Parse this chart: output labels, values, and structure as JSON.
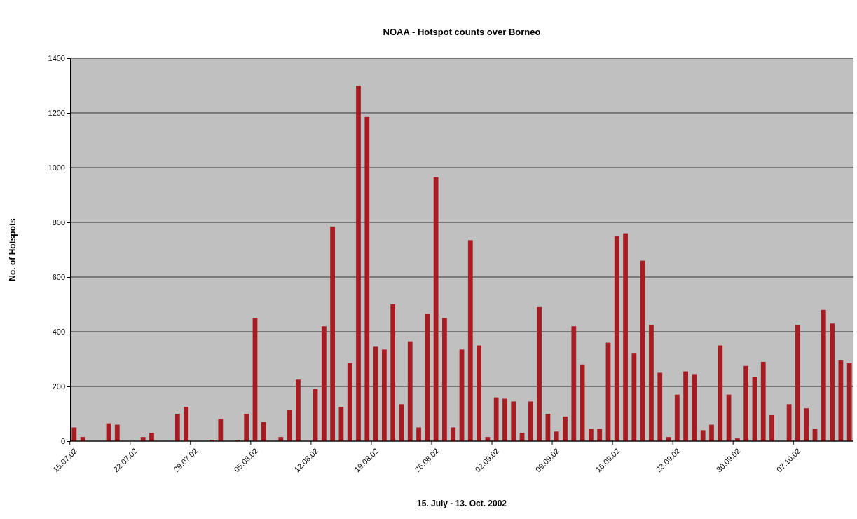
{
  "chart_data": {
    "type": "bar",
    "title": "NOAA - Hotspot counts over Borneo",
    "xlabel": "15. July - 13. Oct. 2002",
    "ylabel": "No. of Hotspots",
    "categories": [
      "15.07.02",
      null,
      null,
      null,
      null,
      null,
      null,
      "22.07.02",
      null,
      null,
      null,
      null,
      null,
      null,
      "29.07.02",
      null,
      null,
      null,
      null,
      null,
      null,
      "05.08.02",
      null,
      null,
      null,
      null,
      null,
      null,
      "12.08.02",
      null,
      null,
      null,
      null,
      null,
      null,
      "19.08.02",
      null,
      null,
      null,
      null,
      null,
      null,
      "26.08.02",
      null,
      null,
      null,
      null,
      null,
      null,
      "02.09.02",
      null,
      null,
      null,
      null,
      null,
      null,
      "09.09.02",
      null,
      null,
      null,
      null,
      null,
      null,
      "16.09.02",
      null,
      null,
      null,
      null,
      null,
      null,
      "23.09.02",
      null,
      null,
      null,
      null,
      null,
      null,
      "30.09.02",
      null,
      null,
      null,
      null,
      null,
      null,
      "07.10.02",
      null,
      null,
      null,
      null,
      null,
      null
    ],
    "values": [
      50,
      15,
      0,
      0,
      65,
      60,
      0,
      0,
      15,
      30,
      0,
      0,
      100,
      125,
      0,
      0,
      5,
      80,
      0,
      5,
      100,
      450,
      70,
      0,
      15,
      115,
      225,
      0,
      190,
      420,
      785,
      125,
      285,
      1300,
      1185,
      345,
      335,
      500,
      135,
      365,
      50,
      465,
      965,
      450,
      50,
      335,
      735,
      350,
      15,
      160,
      155,
      145,
      30,
      145,
      490,
      100,
      35,
      90,
      420,
      280,
      45,
      45,
      360,
      750,
      760,
      320,
      660,
      425,
      250,
      15,
      170,
      255,
      245,
      40,
      60,
      350,
      170,
      10,
      275,
      235,
      290,
      95,
      0,
      135,
      425,
      120,
      45,
      480,
      430,
      295,
      285
    ],
    "color": "#a61c22",
    "ylim": [
      0,
      1400
    ],
    "yticks": [
      0,
      200,
      400,
      600,
      800,
      1000,
      1200,
      1400
    ],
    "grid": "y"
  }
}
